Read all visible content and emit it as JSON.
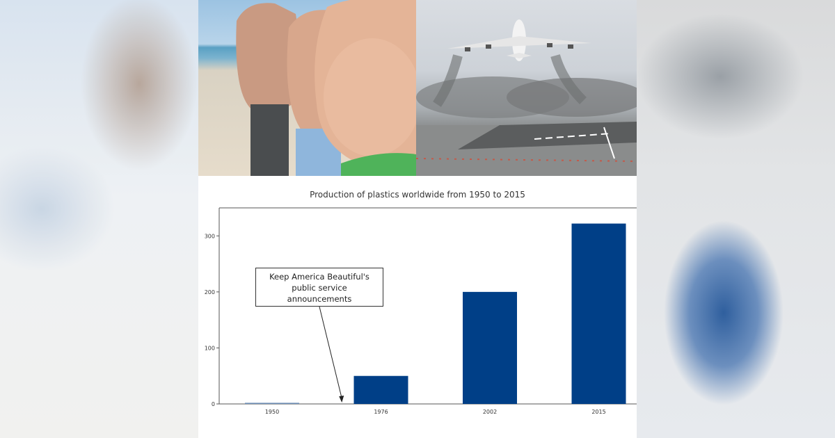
{
  "images": {
    "left_photo": "belly-photo",
    "right_photo": "airplane-takeoff-photo"
  },
  "chart_data": {
    "type": "bar",
    "title": "Production of plastics worldwide from 1950 to 2015",
    "categories": [
      "1950",
      "1976",
      "2002",
      "2015"
    ],
    "values": [
      2,
      50,
      200,
      322
    ],
    "ylim": [
      0,
      350
    ],
    "yticks": [
      0,
      100,
      200,
      300
    ],
    "xlabel": "",
    "ylabel": "",
    "grid": false,
    "bar_color": "#003f87",
    "annotation": {
      "text": "Keep America Beautiful's public service announcements",
      "line1": "Keep America Beautiful's",
      "line2": "public service",
      "line3": "announcements",
      "arrow_target_x_between": [
        "1950",
        "1976"
      ]
    }
  }
}
